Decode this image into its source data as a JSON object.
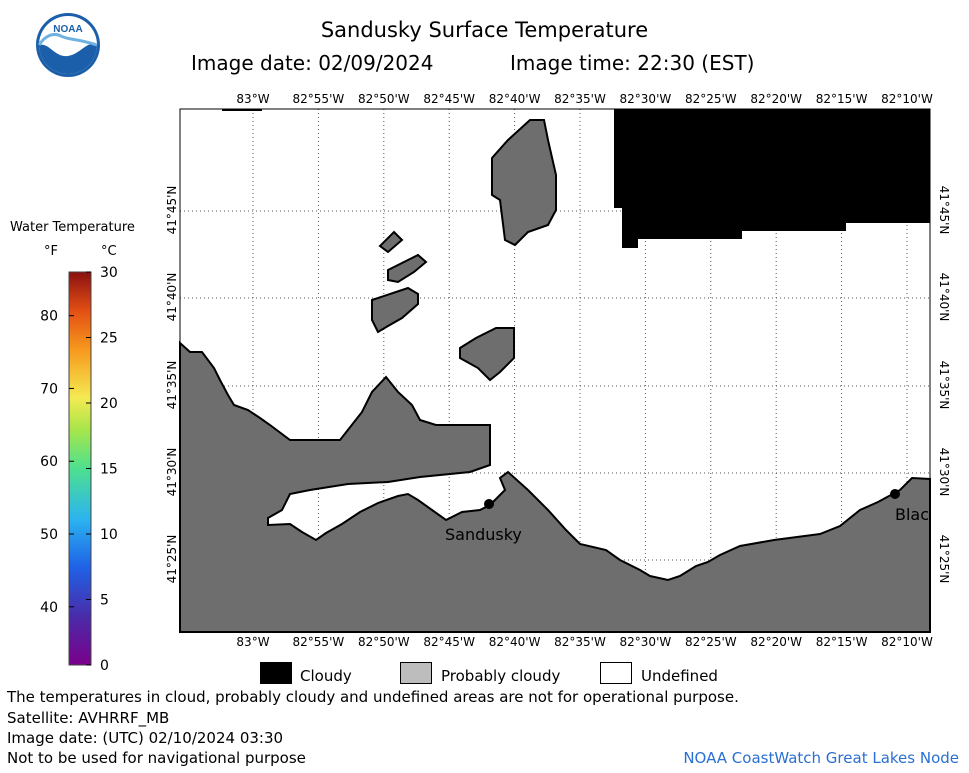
{
  "title": "Sandusky Surface Temperature",
  "image_date_label": "Image date: 02/09/2024",
  "image_time_label": "Image time: 22:30 (EST)",
  "colorbar": {
    "title": "Water Temperature",
    "unit_f": "°F",
    "unit_c": "°C",
    "f_ticks": [
      "40",
      "50",
      "60",
      "70",
      "80"
    ],
    "c_ticks": [
      "0",
      "5",
      "10",
      "15",
      "20",
      "25",
      "30"
    ],
    "c_range": [
      0,
      30
    ]
  },
  "map": {
    "lon_labels": [
      "83°W",
      "82°55'W",
      "82°50'W",
      "82°45'W",
      "82°40'W",
      "82°35'W",
      "82°30'W",
      "82°25'W",
      "82°20'W",
      "82°15'W",
      "82°10'W"
    ],
    "lat_labels": [
      "41°45'N",
      "41°40'N",
      "41°35'N",
      "41°30'N",
      "41°25'N"
    ],
    "places": [
      {
        "name": "Sandusky"
      },
      {
        "name": "Blac"
      }
    ],
    "colors": {
      "land": "#6e6e6e",
      "cloudy": "#000000",
      "water_undefined": "#ffffff",
      "grid": "#555555"
    }
  },
  "legend": {
    "cloudy": "Cloudy",
    "probably_cloudy": "Probably cloudy",
    "undefined": "Undefined"
  },
  "footer": {
    "note": "The temperatures in cloud, probably cloudy and undefined areas are not for operational purpose.",
    "satellite": "Satellite: AVHRRF_MB",
    "utc_date": "Image date: (UTC) 02/10/2024  03:30",
    "nav_warning": "Not to be used for navigational purpose",
    "credit": "NOAA CoastWatch Great Lakes Node"
  },
  "logo_text": "NOAA"
}
